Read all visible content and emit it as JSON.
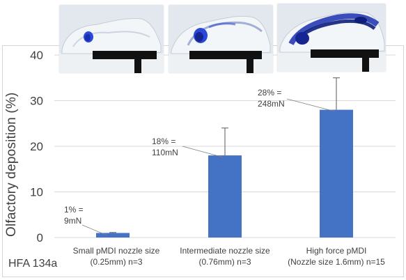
{
  "chart_data": {
    "type": "bar",
    "categories": [
      [
        "Small pMDI nozzle size",
        "(0.25mm) n=3"
      ],
      [
        "Intermediate nozzle size",
        "(0.76mm) n=3"
      ],
      [
        "High force pMDI",
        "(Nozzle size 1.6mm) n=15"
      ]
    ],
    "values": [
      1,
      18,
      28
    ],
    "error_upper": [
      1.1,
      24,
      35
    ],
    "annotations": [
      [
        "1% =",
        "9mN"
      ],
      [
        "18% =",
        "110mN"
      ],
      [
        "28% =",
        "248mN"
      ]
    ],
    "ylabel": "Olfactory deposition (%)",
    "ylim": [
      0,
      40
    ],
    "yticks": [
      0,
      10,
      20,
      30,
      40
    ],
    "grid": true,
    "bar_color": "#4472c4"
  },
  "footnote": "HFA 134a",
  "photos": [
    {
      "name": "nasal-cast-photo-small"
    },
    {
      "name": "nasal-cast-photo-intermediate"
    },
    {
      "name": "nasal-cast-photo-high-force"
    }
  ]
}
